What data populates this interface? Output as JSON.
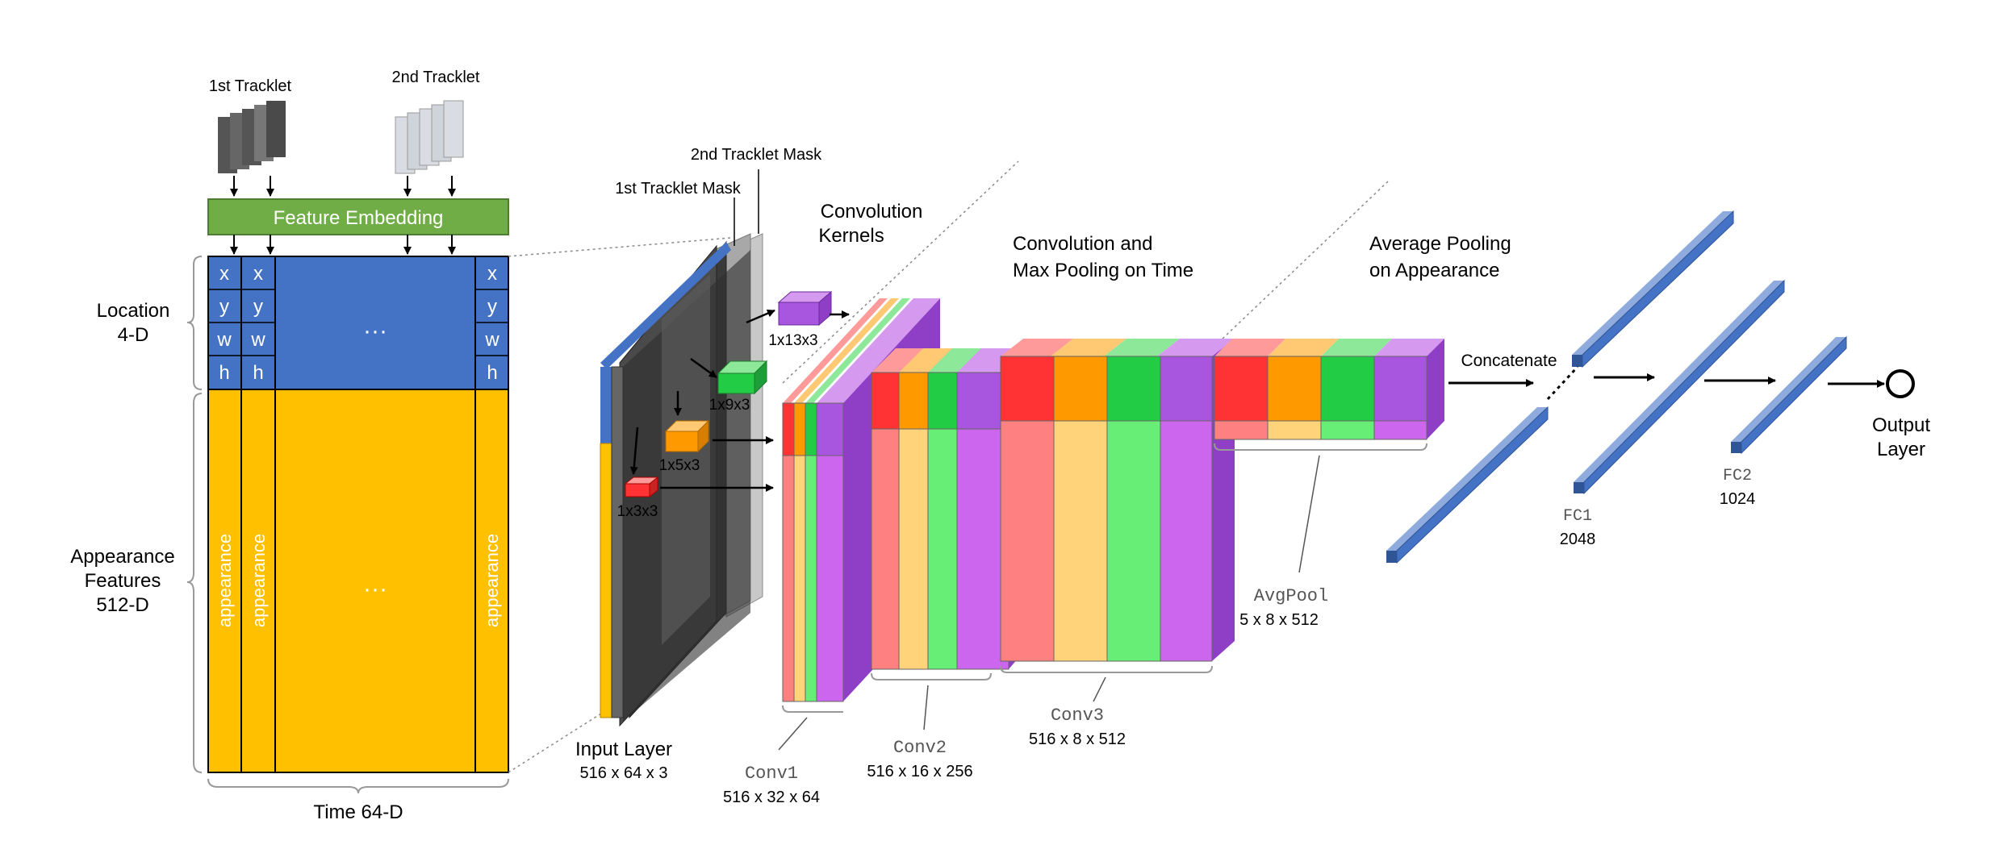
{
  "tracklets": {
    "first_label": "1st Tracklet",
    "second_label": "2nd Tracklet"
  },
  "embedding": {
    "label": "Feature Embedding"
  },
  "matrix": {
    "location_rows": [
      "x",
      "y",
      "w",
      "h"
    ],
    "appearance_col_label": "appearance",
    "ellipsis": "···",
    "side_labels": {
      "location": [
        "Location",
        "4-D"
      ],
      "appearance": [
        "Appearance",
        "Features",
        "512-D"
      ]
    },
    "time_label": "Time 64-D"
  },
  "masks": {
    "first": "1st Tracklet Mask",
    "second": "2nd Tracklet Mask"
  },
  "kernels": {
    "title": [
      "Convolution",
      "Kernels"
    ],
    "items": [
      "1x13x3",
      "1x9x3",
      "1x5x3",
      "1x3x3"
    ]
  },
  "headings": {
    "conv_maxpool": [
      "Convolution and",
      "Max Pooling on Time"
    ],
    "avg_pool": [
      "Average Pooling",
      "on Appearance"
    ]
  },
  "layers": [
    {
      "name": "Input Layer",
      "dims": "516 x 64 x 3"
    },
    {
      "name": "Conv1",
      "dims": "516 x 32 x 64"
    },
    {
      "name": "Conv2",
      "dims": "516 x 16 x 256"
    },
    {
      "name": "Conv3",
      "dims": "516 x 8 x 512"
    },
    {
      "name": "AvgPool",
      "dims": "5 x 8 x 512"
    },
    {
      "name": "FC1",
      "dims": "2048"
    },
    {
      "name": "FC2",
      "dims": "1024"
    }
  ],
  "concatenate": "Concatenate",
  "output": [
    "Output",
    "Layer"
  ],
  "colors": {
    "blue": "#4472c4",
    "yellow": "#ffc000",
    "green_bar": "#70ad47",
    "red": "#ff3333",
    "orange": "#ff9900",
    "green": "#22cc44",
    "purple": "#a855e0"
  }
}
